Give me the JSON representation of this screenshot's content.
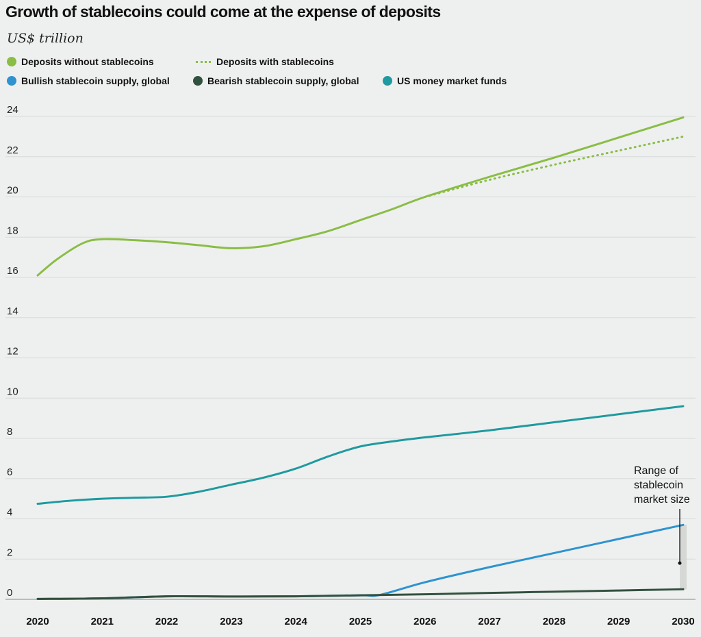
{
  "chart_data": {
    "type": "line",
    "title": "Growth of stablecoins could come at the expense of deposits",
    "subtitle": "US$ trillion",
    "xlabel": "",
    "ylabel": "US$ trillion",
    "ylim": [
      0,
      24
    ],
    "yticks": [
      0,
      2,
      4,
      6,
      8,
      10,
      12,
      14,
      16,
      18,
      20,
      22,
      24
    ],
    "xlim": [
      2020,
      2030
    ],
    "xticks": [
      2020,
      2021,
      2022,
      2023,
      2024,
      2025,
      2026,
      2027,
      2028,
      2029,
      2030
    ],
    "series": [
      {
        "key": "deposits_without",
        "name": "Deposits without stablecoins",
        "color": "#8abd45",
        "style": "solid",
        "x": [
          2020,
          2020.3,
          2020.7,
          2021,
          2021.5,
          2022,
          2022.5,
          2023,
          2023.5,
          2024,
          2024.5,
          2025,
          2025.5,
          2026,
          2027,
          2028,
          2029,
          2030
        ],
        "values": [
          16.1,
          16.9,
          17.7,
          17.9,
          17.85,
          17.75,
          17.6,
          17.45,
          17.55,
          17.9,
          18.3,
          18.85,
          19.4,
          20.0,
          21.0,
          21.95,
          22.95,
          23.95
        ]
      },
      {
        "key": "deposits_with",
        "name": "Deposits with stablecoins",
        "color": "#8abd45",
        "style": "dotted",
        "x": [
          2026,
          2027,
          2028,
          2029,
          2030
        ],
        "values": [
          20.0,
          20.85,
          21.6,
          22.3,
          23.0
        ]
      },
      {
        "key": "bullish",
        "name": "Bullish stablecoin supply, global",
        "color": "#2e93cf",
        "style": "solid",
        "x": [
          2020,
          2021,
          2022,
          2023,
          2024,
          2025,
          2025.3,
          2026,
          2027,
          2028,
          2029,
          2030
        ],
        "values": [
          0.02,
          0.05,
          0.15,
          0.14,
          0.15,
          0.2,
          0.22,
          0.85,
          1.6,
          2.3,
          3.0,
          3.7
        ]
      },
      {
        "key": "bearish",
        "name": "Bearish stablecoin supply, global",
        "color": "#32503f",
        "style": "solid",
        "x": [
          2020,
          2021,
          2022,
          2023,
          2024,
          2025,
          2026,
          2027,
          2028,
          2029,
          2030
        ],
        "values": [
          0.02,
          0.05,
          0.15,
          0.14,
          0.15,
          0.2,
          0.25,
          0.32,
          0.38,
          0.44,
          0.5
        ]
      },
      {
        "key": "mmf",
        "name": "US money market funds",
        "color": "#1e9aa0",
        "style": "solid",
        "x": [
          2020,
          2020.5,
          2021,
          2021.5,
          2022,
          2022.5,
          2023,
          2023.5,
          2024,
          2024.5,
          2025,
          2025.5,
          2026,
          2027,
          2028,
          2029,
          2030
        ],
        "values": [
          4.75,
          4.9,
          5.0,
          5.05,
          5.1,
          5.35,
          5.7,
          6.05,
          6.5,
          7.1,
          7.6,
          7.85,
          8.05,
          8.4,
          8.8,
          9.2,
          9.6
        ]
      }
    ],
    "legend": [
      {
        "label": "Deposits without stablecoins",
        "color": "#8abd45",
        "marker": "dot"
      },
      {
        "label": "Deposits with stablecoins",
        "color": "#8abd45",
        "marker": "dotted-line"
      },
      {
        "label": "Bullish stablecoin supply, global",
        "color": "#2e93cf",
        "marker": "dot"
      },
      {
        "label": "Bearish stablecoin supply, global",
        "color": "#32503f",
        "marker": "dot"
      },
      {
        "label": "US money market funds",
        "color": "#1e9aa0",
        "marker": "dot"
      }
    ],
    "annotation": {
      "lines": [
        "Range of",
        "stablecoin",
        "market size"
      ],
      "x": 2030,
      "range": [
        0.5,
        3.7
      ]
    },
    "grid": true
  }
}
